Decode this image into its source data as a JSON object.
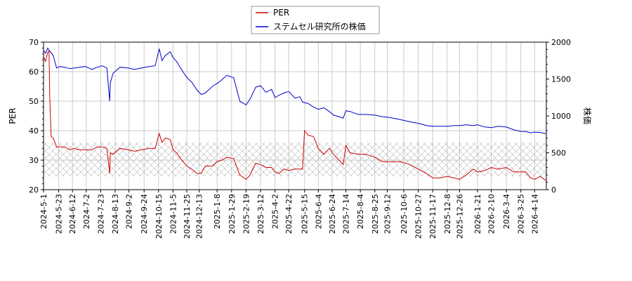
{
  "chart_data": {
    "type": "line",
    "legend": {
      "position": "top-center"
    },
    "grid": true,
    "x_type": "date",
    "xlim": [
      "2024-05-01",
      "2026-05-01"
    ],
    "x_ticks": [
      "2024-5-1",
      "2024-5-23",
      "2024-6-12",
      "2024-7-2",
      "2024-7-23",
      "2024-8-13",
      "2024-9-2",
      "2024-9-24",
      "2024-10-15",
      "2024-11-5",
      "2024-11-25",
      "2024-12-13",
      "2025-1-8",
      "2025-1-29",
      "2025-2-19",
      "2025-3-12",
      "2025-4-2",
      "2025-4-22",
      "2025-5-15",
      "2025-6-4",
      "2025-6-24",
      "2025-7-14",
      "2025-8-4",
      "2025-8-25",
      "2025-9-12",
      "2025-10-6",
      "2025-10-27",
      "2025-11-17",
      "2025-12-8",
      "2025-12-26",
      "2026-1-21",
      "2026-2-10",
      "2026-3-4",
      "2026-3-25",
      "2026-4-14"
    ],
    "ylabel_left": "PER",
    "ylabel_right": "株価",
    "ylim_left": [
      20,
      70
    ],
    "ylim_right": [
      0,
      2000
    ],
    "yticks_left": [
      20,
      30,
      40,
      50,
      60,
      70
    ],
    "yticks_right": [
      0,
      500,
      1000,
      1500,
      2000
    ],
    "hatch_band_left": [
      24.5,
      36
    ],
    "series": [
      {
        "name": "PER",
        "axis": "left",
        "color": "#cc0000",
        "x": [
          "2024-05-01",
          "2024-05-04",
          "2024-05-07",
          "2024-05-09",
          "2024-05-10",
          "2024-05-12",
          "2024-05-15",
          "2024-05-20",
          "2024-05-25",
          "2024-06-01",
          "2024-06-08",
          "2024-06-15",
          "2024-06-22",
          "2024-07-01",
          "2024-07-10",
          "2024-07-18",
          "2024-07-25",
          "2024-08-01",
          "2024-08-05",
          "2024-08-06",
          "2024-08-10",
          "2024-08-20",
          "2024-09-01",
          "2024-09-10",
          "2024-09-20",
          "2024-10-01",
          "2024-10-10",
          "2024-10-16",
          "2024-10-20",
          "2024-10-25",
          "2024-11-01",
          "2024-11-05",
          "2024-11-10",
          "2024-11-18",
          "2024-11-25",
          "2024-12-02",
          "2024-12-10",
          "2024-12-16",
          "2024-12-22",
          "2025-01-01",
          "2025-01-08",
          "2025-01-15",
          "2025-01-22",
          "2025-02-01",
          "2025-02-10",
          "2025-02-19",
          "2025-02-25",
          "2025-03-05",
          "2025-03-12",
          "2025-03-20",
          "2025-03-28",
          "2025-04-02",
          "2025-04-08",
          "2025-04-15",
          "2025-04-22",
          "2025-05-01",
          "2025-05-08",
          "2025-05-12",
          "2025-05-15",
          "2025-05-20",
          "2025-05-28",
          "2025-06-04",
          "2025-06-12",
          "2025-06-20",
          "2025-06-26",
          "2025-07-04",
          "2025-07-10",
          "2025-07-14",
          "2025-07-20",
          "2025-08-01",
          "2025-08-12",
          "2025-08-25",
          "2025-09-05",
          "2025-09-15",
          "2025-10-01",
          "2025-10-15",
          "2025-10-27",
          "2025-11-08",
          "2025-11-17",
          "2025-11-28",
          "2025-12-08",
          "2025-12-18",
          "2025-12-26",
          "2026-01-05",
          "2026-01-15",
          "2026-01-21",
          "2026-02-01",
          "2026-02-10",
          "2026-02-20",
          "2026-03-04",
          "2026-03-15",
          "2026-03-25",
          "2026-04-01",
          "2026-04-08",
          "2026-04-14",
          "2026-04-22",
          "2026-05-01"
        ],
        "y": [
          65,
          63.5,
          66.5,
          67,
          52,
          38,
          37.5,
          34.5,
          34.5,
          34.5,
          33.5,
          34,
          33.5,
          33.5,
          33.5,
          34.5,
          34.5,
          34,
          25.5,
          32.5,
          32,
          34,
          33.5,
          33,
          33.5,
          34,
          34,
          39,
          36,
          37.5,
          37,
          33.5,
          32.5,
          30,
          28,
          27,
          25.5,
          25.5,
          28,
          28,
          29.5,
          30,
          31,
          30.5,
          25,
          23.5,
          25,
          29,
          28.5,
          27.5,
          27.5,
          26,
          25.5,
          27,
          26.5,
          27,
          27,
          27,
          40,
          38.5,
          38,
          34,
          32,
          34,
          32,
          30,
          28.5,
          35,
          32.5,
          32,
          32,
          31,
          29.5,
          29.5,
          29.5,
          28.5,
          27,
          25.5,
          24,
          24,
          24.5,
          24,
          23.5,
          25,
          27,
          26,
          26.5,
          27.5,
          27,
          27.5,
          26,
          26,
          26,
          24,
          23.5,
          24.5,
          23
        ]
      },
      {
        "name": "ステムセル研究所の株価",
        "axis": "right",
        "color": "#0000cc",
        "x": [
          "2024-05-01",
          "2024-05-04",
          "2024-05-07",
          "2024-05-10",
          "2024-05-15",
          "2024-05-20",
          "2024-05-25",
          "2024-06-01",
          "2024-06-08",
          "2024-06-15",
          "2024-06-22",
          "2024-07-01",
          "2024-07-10",
          "2024-07-18",
          "2024-07-25",
          "2024-08-01",
          "2024-08-05",
          "2024-08-06",
          "2024-08-10",
          "2024-08-20",
          "2024-09-01",
          "2024-09-10",
          "2024-09-20",
          "2024-10-01",
          "2024-10-10",
          "2024-10-16",
          "2024-10-20",
          "2024-10-25",
          "2024-11-01",
          "2024-11-05",
          "2024-11-10",
          "2024-11-18",
          "2024-11-25",
          "2024-12-02",
          "2024-12-10",
          "2024-12-16",
          "2024-12-22",
          "2025-01-01",
          "2025-01-08",
          "2025-01-15",
          "2025-01-22",
          "2025-02-01",
          "2025-02-10",
          "2025-02-19",
          "2025-02-25",
          "2025-03-05",
          "2025-03-12",
          "2025-03-20",
          "2025-03-28",
          "2025-04-02",
          "2025-04-08",
          "2025-04-15",
          "2025-04-22",
          "2025-05-01",
          "2025-05-08",
          "2025-05-12",
          "2025-05-15",
          "2025-05-20",
          "2025-05-28",
          "2025-06-04",
          "2025-06-12",
          "2025-06-20",
          "2025-06-26",
          "2025-07-04",
          "2025-07-10",
          "2025-07-14",
          "2025-07-20",
          "2025-08-01",
          "2025-08-12",
          "2025-08-25",
          "2025-09-05",
          "2025-09-15",
          "2025-10-01",
          "2025-10-15",
          "2025-10-27",
          "2025-11-08",
          "2025-11-17",
          "2025-11-28",
          "2025-12-08",
          "2025-12-18",
          "2025-12-26",
          "2026-01-05",
          "2026-01-15",
          "2026-01-21",
          "2026-02-01",
          "2026-02-10",
          "2026-02-20",
          "2026-03-04",
          "2026-03-15",
          "2026-03-25",
          "2026-04-01",
          "2026-04-08",
          "2026-04-14",
          "2026-04-22",
          "2026-05-01"
        ],
        "y": [
          1890,
          1850,
          1920,
          1880,
          1820,
          1650,
          1670,
          1660,
          1640,
          1650,
          1660,
          1670,
          1630,
          1660,
          1680,
          1650,
          1200,
          1450,
          1580,
          1660,
          1650,
          1630,
          1650,
          1670,
          1680,
          1910,
          1750,
          1820,
          1870,
          1790,
          1740,
          1620,
          1520,
          1460,
          1350,
          1290,
          1310,
          1400,
          1440,
          1490,
          1550,
          1520,
          1200,
          1150,
          1230,
          1390,
          1410,
          1320,
          1360,
          1250,
          1280,
          1310,
          1330,
          1240,
          1260,
          1190,
          1180,
          1170,
          1120,
          1090,
          1110,
          1060,
          1010,
          990,
          970,
          1070,
          1060,
          1020,
          1020,
          1010,
          990,
          980,
          950,
          920,
          900,
          870,
          860,
          860,
          860,
          870,
          870,
          880,
          870,
          880,
          850,
          840,
          860,
          850,
          810,
          790,
          790,
          770,
          780,
          775,
          760
        ]
      }
    ]
  }
}
